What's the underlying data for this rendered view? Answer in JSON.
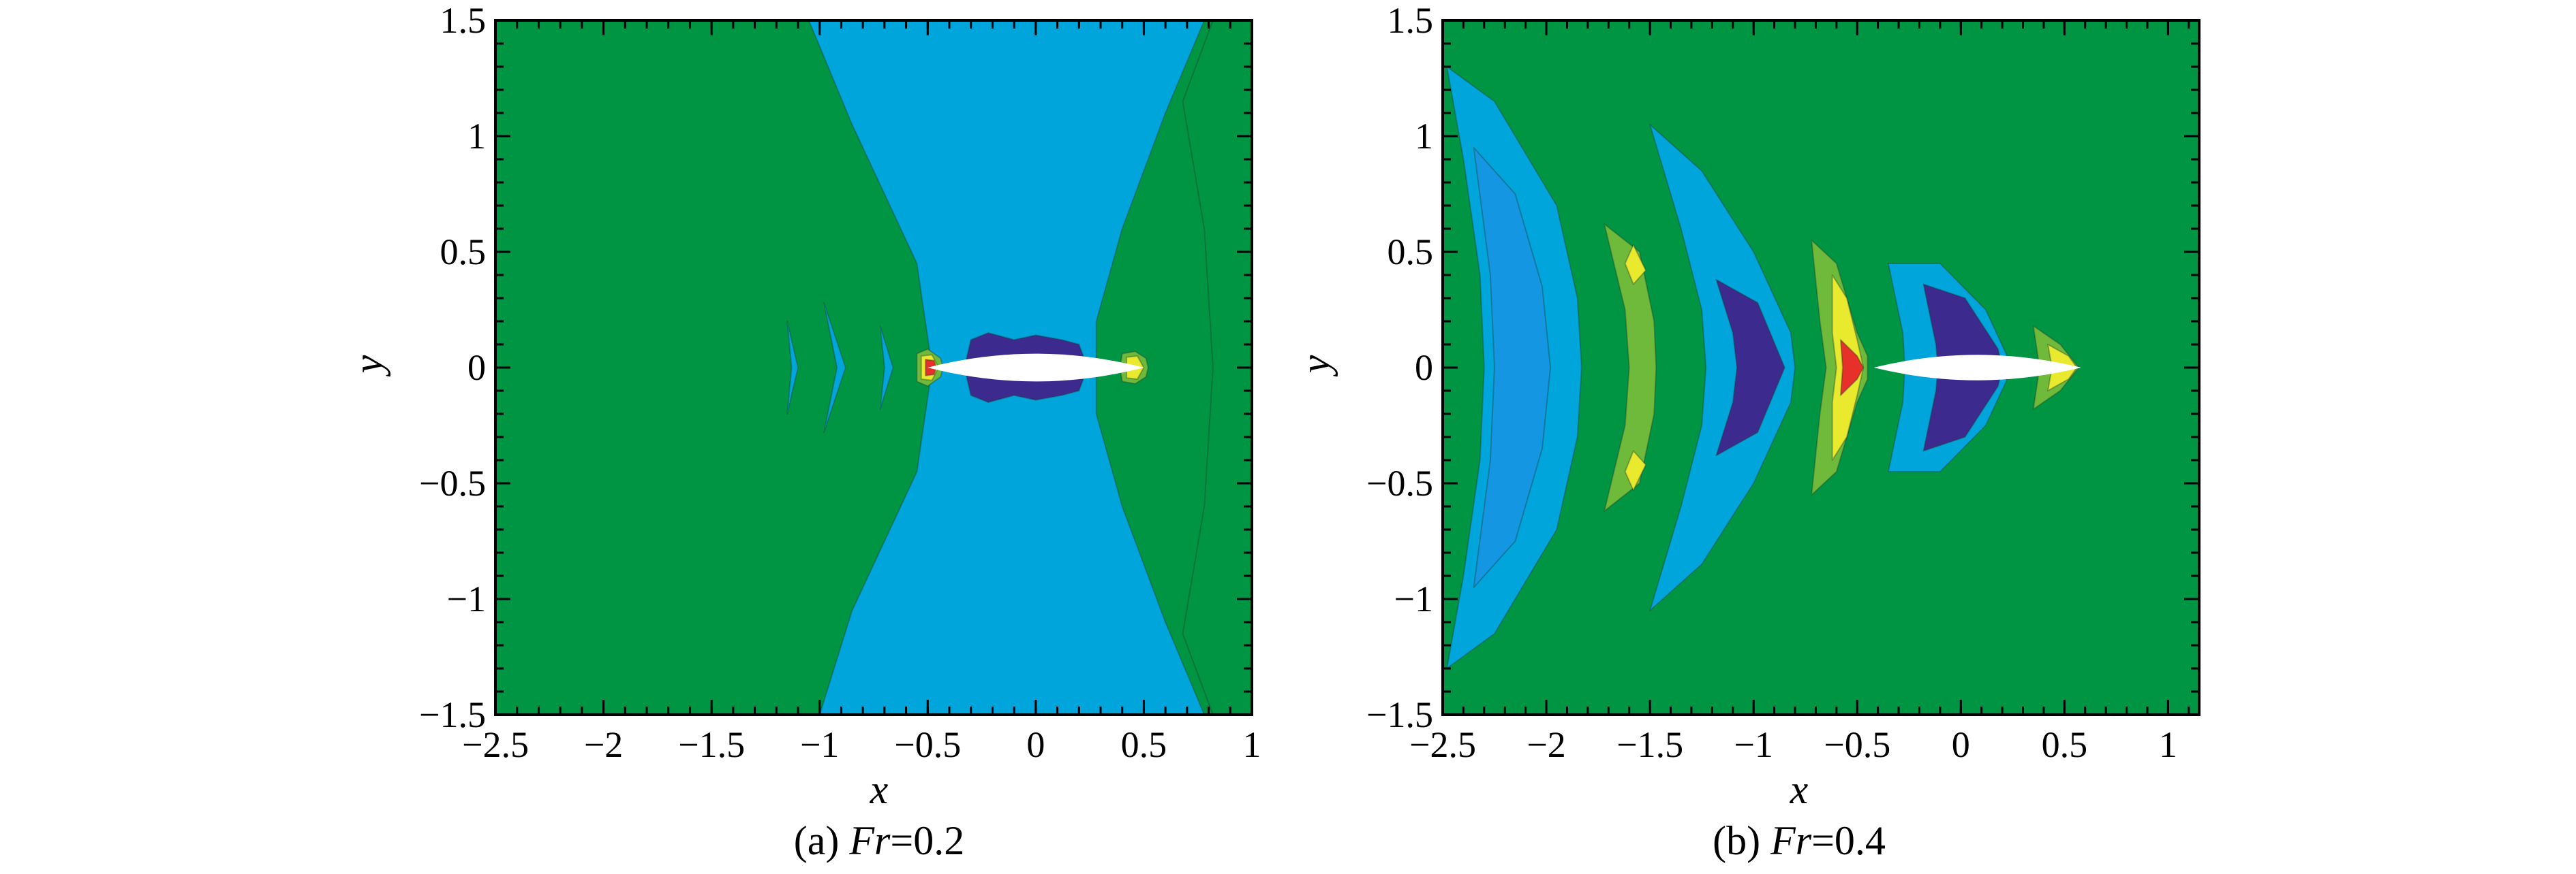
{
  "colors": {
    "far_field": "#009543",
    "light_blue": "#00a5dc",
    "mid_blue": "#1596e3",
    "dark_purple": "#3d2a8f",
    "light_green": "#6fba3a",
    "yellow": "#e9ea2e",
    "red": "#e8302a",
    "hull": "#ffffff",
    "frame": "#000000"
  },
  "chart_data": [
    {
      "type": "contour",
      "panel": "a",
      "caption_prefix": "(a) ",
      "caption_var": "Fr",
      "caption_value": "=0.2",
      "xlabel": "x",
      "ylabel": "y",
      "xlim": [
        -2.5,
        1
      ],
      "ylim": [
        -1.5,
        1.5
      ],
      "x_ticks": [
        "−2.5",
        "−2",
        "−1.5",
        "−1",
        "−0.5",
        "0",
        "0.5",
        "1"
      ],
      "x_tick_values": [
        -2.5,
        -2,
        -1.5,
        -1,
        -0.5,
        0,
        0.5,
        1
      ],
      "y_ticks": [
        "1.5",
        "1",
        "0.5",
        "0",
        "−0.5",
        "−1",
        "−1.5"
      ],
      "y_tick_values": [
        1.5,
        1,
        0.5,
        0,
        -0.5,
        -1,
        -1.5
      ],
      "regions": [
        {
          "level": "light_blue",
          "points": [
            [
              -1.05,
              1.5
            ],
            [
              -0.2,
              1.5
            ],
            [
              0.78,
              1.5
            ],
            [
              0.6,
              1.1
            ],
            [
              0.4,
              0.6
            ],
            [
              0.28,
              0.2
            ],
            [
              0.28,
              -0.2
            ],
            [
              0.4,
              -0.6
            ],
            [
              0.6,
              -1.1
            ],
            [
              0.78,
              -1.5
            ],
            [
              -1.0,
              -1.5
            ],
            [
              -0.85,
              -1.05
            ],
            [
              -0.55,
              -0.45
            ],
            [
              -0.48,
              0
            ],
            [
              -0.55,
              0.45
            ],
            [
              -0.85,
              1.05
            ]
          ]
        },
        {
          "level": "far_field",
          "points": [
            [
              0.82,
              1.5
            ],
            [
              1.0,
              1.5
            ],
            [
              1.0,
              -1.5
            ],
            [
              0.82,
              -1.5
            ],
            [
              0.68,
              -1.15
            ],
            [
              0.78,
              -0.6
            ],
            [
              0.82,
              0
            ],
            [
              0.78,
              0.6
            ],
            [
              0.68,
              1.15
            ]
          ]
        },
        {
          "level": "light_blue",
          "points": [
            [
              -1.15,
              0.2
            ],
            [
              -1.1,
              0.0
            ],
            [
              -1.15,
              -0.2
            ],
            [
              -1.13,
              0.0
            ]
          ]
        },
        {
          "level": "light_blue",
          "points": [
            [
              -0.98,
              0.28
            ],
            [
              -0.88,
              0.0
            ],
            [
              -0.98,
              -0.28
            ],
            [
              -0.92,
              0.0
            ]
          ]
        },
        {
          "level": "light_blue",
          "points": [
            [
              -0.72,
              0.18
            ],
            [
              -0.66,
              0.0
            ],
            [
              -0.72,
              -0.18
            ],
            [
              -0.7,
              0.0
            ]
          ]
        },
        {
          "level": "dark_purple",
          "points": [
            [
              -0.3,
              0.12
            ],
            [
              -0.22,
              0.15
            ],
            [
              -0.1,
              0.12
            ],
            [
              0.0,
              0.14
            ],
            [
              0.12,
              0.12
            ],
            [
              0.2,
              0.1
            ],
            [
              0.24,
              0.0
            ],
            [
              0.2,
              -0.1
            ],
            [
              0.12,
              -0.12
            ],
            [
              0.0,
              -0.14
            ],
            [
              -0.1,
              -0.12
            ],
            [
              -0.22,
              -0.15
            ],
            [
              -0.3,
              -0.12
            ],
            [
              -0.33,
              0.0
            ]
          ]
        },
        {
          "level": "light_green",
          "points": [
            [
              -0.55,
              0.06
            ],
            [
              -0.5,
              0.08
            ],
            [
              -0.44,
              0.04
            ],
            [
              -0.43,
              0.0
            ],
            [
              -0.44,
              -0.04
            ],
            [
              -0.5,
              -0.08
            ],
            [
              -0.55,
              -0.06
            ]
          ]
        },
        {
          "level": "yellow",
          "points": [
            [
              -0.53,
              0.05
            ],
            [
              -0.48,
              0.055
            ],
            [
              -0.45,
              0.0
            ],
            [
              -0.48,
              -0.055
            ],
            [
              -0.53,
              -0.05
            ]
          ]
        },
        {
          "level": "red",
          "points": [
            [
              -0.51,
              0.035
            ],
            [
              -0.47,
              0.03
            ],
            [
              -0.46,
              0.0
            ],
            [
              -0.47,
              -0.03
            ],
            [
              -0.51,
              -0.035
            ]
          ]
        },
        {
          "level": "light_green",
          "points": [
            [
              0.4,
              0.06
            ],
            [
              0.46,
              0.07
            ],
            [
              0.51,
              0.04
            ],
            [
              0.52,
              0.0
            ],
            [
              0.51,
              -0.04
            ],
            [
              0.46,
              -0.07
            ],
            [
              0.4,
              -0.06
            ],
            [
              0.39,
              0.0
            ]
          ]
        },
        {
          "level": "yellow",
          "points": [
            [
              0.42,
              0.045
            ],
            [
              0.47,
              0.05
            ],
            [
              0.5,
              0.0
            ],
            [
              0.47,
              -0.05
            ],
            [
              0.42,
              -0.045
            ]
          ]
        }
      ],
      "hull": {
        "x_min": -0.5,
        "x_max": 0.5,
        "half_width": 0.06
      }
    },
    {
      "type": "contour",
      "panel": "b",
      "caption_prefix": "(b) ",
      "caption_var": "Fr",
      "caption_value": "=0.4",
      "xlabel": "x",
      "ylabel": "y",
      "xlim": [
        -2.5,
        1.15
      ],
      "ylim": [
        -1.5,
        1.5
      ],
      "x_ticks": [
        "−2.5",
        "−2",
        "−1.5",
        "−1",
        "−0.5",
        "0",
        "0.5",
        "1"
      ],
      "x_tick_values": [
        -2.5,
        -2,
        -1.5,
        -1,
        -0.5,
        0,
        0.5,
        1
      ],
      "y_ticks": [
        "1.5",
        "1",
        "0.5",
        "0",
        "−0.5",
        "−1",
        "−1.5"
      ],
      "y_tick_values": [
        1.5,
        1,
        0.5,
        0,
        -0.5,
        -1,
        -1.5
      ],
      "regions": [
        {
          "level": "light_blue",
          "points": [
            [
              -2.48,
              1.3
            ],
            [
              -2.25,
              1.15
            ],
            [
              -1.95,
              0.7
            ],
            [
              -1.85,
              0.3
            ],
            [
              -1.83,
              0.0
            ],
            [
              -1.85,
              -0.3
            ],
            [
              -1.95,
              -0.7
            ],
            [
              -2.25,
              -1.15
            ],
            [
              -2.48,
              -1.3
            ],
            [
              -2.4,
              -0.9
            ],
            [
              -2.32,
              -0.4
            ],
            [
              -2.3,
              0.0
            ],
            [
              -2.32,
              0.4
            ],
            [
              -2.4,
              0.9
            ]
          ]
        },
        {
          "level": "mid_blue",
          "points": [
            [
              -2.35,
              0.95
            ],
            [
              -2.15,
              0.75
            ],
            [
              -2.02,
              0.35
            ],
            [
              -1.98,
              0.0
            ],
            [
              -2.02,
              -0.35
            ],
            [
              -2.15,
              -0.75
            ],
            [
              -2.35,
              -0.95
            ],
            [
              -2.27,
              -0.4
            ],
            [
              -2.25,
              0.0
            ],
            [
              -2.27,
              0.4
            ]
          ]
        },
        {
          "level": "light_green",
          "points": [
            [
              -1.72,
              0.62
            ],
            [
              -1.55,
              0.5
            ],
            [
              -1.48,
              0.2
            ],
            [
              -1.47,
              0.0
            ],
            [
              -1.48,
              -0.2
            ],
            [
              -1.55,
              -0.5
            ],
            [
              -1.72,
              -0.62
            ],
            [
              -1.62,
              -0.25
            ],
            [
              -1.6,
              0.0
            ],
            [
              -1.62,
              0.25
            ]
          ]
        },
        {
          "level": "yellow",
          "points": [
            [
              -1.58,
              0.53
            ],
            [
              -1.52,
              0.42
            ],
            [
              -1.58,
              0.36
            ],
            [
              -1.62,
              0.45
            ]
          ]
        },
        {
          "level": "yellow",
          "points": [
            [
              -1.58,
              -0.53
            ],
            [
              -1.52,
              -0.42
            ],
            [
              -1.58,
              -0.36
            ],
            [
              -1.62,
              -0.45
            ]
          ]
        },
        {
          "level": "light_blue",
          "points": [
            [
              -1.5,
              1.05
            ],
            [
              -1.25,
              0.85
            ],
            [
              -1.0,
              0.5
            ],
            [
              -0.82,
              0.15
            ],
            [
              -0.8,
              0.0
            ],
            [
              -0.82,
              -0.15
            ],
            [
              -1.0,
              -0.5
            ],
            [
              -1.25,
              -0.85
            ],
            [
              -1.5,
              -1.05
            ],
            [
              -1.35,
              -0.6
            ],
            [
              -1.25,
              -0.25
            ],
            [
              -1.23,
              0.0
            ],
            [
              -1.25,
              0.25
            ],
            [
              -1.35,
              0.6
            ]
          ]
        },
        {
          "level": "dark_purple",
          "points": [
            [
              -1.18,
              0.38
            ],
            [
              -0.98,
              0.28
            ],
            [
              -0.85,
              0.0
            ],
            [
              -0.98,
              -0.28
            ],
            [
              -1.18,
              -0.38
            ],
            [
              -1.1,
              -0.15
            ],
            [
              -1.08,
              0.0
            ],
            [
              -1.1,
              0.15
            ]
          ]
        },
        {
          "level": "light_green",
          "points": [
            [
              -0.72,
              0.55
            ],
            [
              -0.6,
              0.45
            ],
            [
              -0.5,
              0.15
            ],
            [
              -0.45,
              0.05
            ],
            [
              -0.45,
              -0.05
            ],
            [
              -0.5,
              -0.15
            ],
            [
              -0.6,
              -0.45
            ],
            [
              -0.72,
              -0.55
            ],
            [
              -0.68,
              -0.2
            ],
            [
              -0.65,
              0.0
            ],
            [
              -0.68,
              0.2
            ]
          ]
        },
        {
          "level": "yellow",
          "points": [
            [
              -0.62,
              0.4
            ],
            [
              -0.55,
              0.3
            ],
            [
              -0.5,
              0.12
            ],
            [
              -0.47,
              0.0
            ],
            [
              -0.5,
              -0.12
            ],
            [
              -0.55,
              -0.3
            ],
            [
              -0.62,
              -0.4
            ],
            [
              -0.62,
              -0.15
            ],
            [
              -0.6,
              0.0
            ],
            [
              -0.62,
              0.15
            ]
          ]
        },
        {
          "level": "red",
          "points": [
            [
              -0.58,
              0.12
            ],
            [
              -0.5,
              0.05
            ],
            [
              -0.47,
              0.0
            ],
            [
              -0.5,
              -0.05
            ],
            [
              -0.58,
              -0.12
            ],
            [
              -0.57,
              0.0
            ]
          ]
        },
        {
          "level": "light_blue",
          "points": [
            [
              -0.35,
              0.45
            ],
            [
              -0.1,
              0.45
            ],
            [
              0.12,
              0.25
            ],
            [
              0.25,
              0.0
            ],
            [
              0.12,
              -0.25
            ],
            [
              -0.1,
              -0.45
            ],
            [
              -0.35,
              -0.45
            ],
            [
              -0.28,
              -0.15
            ],
            [
              -0.27,
              0.0
            ],
            [
              -0.28,
              0.15
            ]
          ]
        },
        {
          "level": "dark_purple",
          "points": [
            [
              -0.18,
              0.36
            ],
            [
              0.02,
              0.3
            ],
            [
              0.18,
              0.08
            ],
            [
              0.2,
              0.0
            ],
            [
              0.18,
              -0.08
            ],
            [
              0.02,
              -0.3
            ],
            [
              -0.18,
              -0.36
            ],
            [
              -0.12,
              -0.1
            ],
            [
              -0.11,
              0.0
            ],
            [
              -0.12,
              0.1
            ]
          ]
        },
        {
          "level": "light_green",
          "points": [
            [
              0.35,
              0.18
            ],
            [
              0.48,
              0.1
            ],
            [
              0.57,
              0.0
            ],
            [
              0.48,
              -0.1
            ],
            [
              0.35,
              -0.18
            ],
            [
              0.38,
              0.0
            ]
          ]
        },
        {
          "level": "yellow",
          "points": [
            [
              0.42,
              0.1
            ],
            [
              0.52,
              0.05
            ],
            [
              0.56,
              0.0
            ],
            [
              0.52,
              -0.05
            ],
            [
              0.42,
              -0.1
            ],
            [
              0.44,
              0.0
            ]
          ]
        }
      ],
      "hull": {
        "x_min": -0.42,
        "x_max": 0.58,
        "half_width": 0.055
      }
    }
  ]
}
